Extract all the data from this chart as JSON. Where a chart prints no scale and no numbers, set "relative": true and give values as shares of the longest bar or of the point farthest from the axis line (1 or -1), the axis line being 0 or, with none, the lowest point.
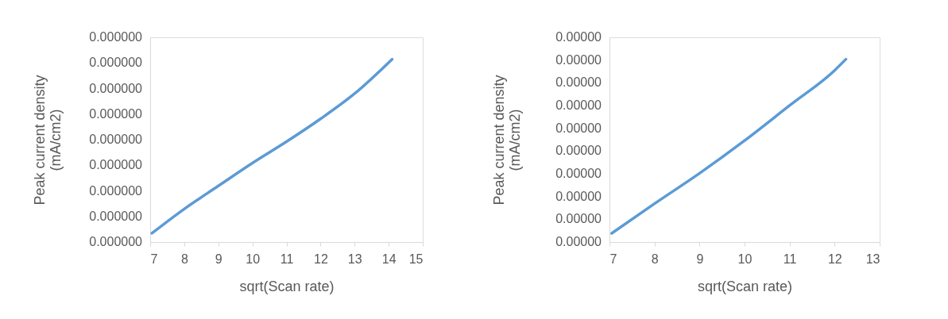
{
  "chart_data": [
    {
      "type": "line",
      "relative": true,
      "xlabel": "sqrt(Scan rate)",
      "ylabel": "Peak current density\n(mA/cm2)",
      "x": [
        7.05,
        8,
        9,
        10,
        11,
        12,
        13,
        14.1
      ],
      "series": [
        {
          "color": "#5b9bd5",
          "values": [
            0.048,
            0.181,
            0.307,
            0.432,
            0.549,
            0.674,
            0.812,
            1
          ]
        }
      ],
      "xlim": [
        7,
        15
      ],
      "xticks": [
        7,
        8,
        9,
        10,
        11,
        12,
        13,
        14,
        15
      ],
      "annotations": [
        "0.000000",
        "0.000000",
        "0.000000",
        "0.000000",
        "0.000000",
        "0.000000",
        "0.000000",
        "0.000000",
        "0.000000"
      ],
      "grid": false,
      "marker": "none",
      "line_style": "solid"
    },
    {
      "type": "line",
      "relative": true,
      "xlabel": "sqrt(Scan rate)",
      "ylabel": "Peak current density\n(mA/cm2)",
      "x": [
        7.05,
        8,
        9,
        10,
        11,
        12,
        12.25
      ],
      "series": [
        {
          "color": "#5b9bd5",
          "values": [
            0.048,
            0.21,
            0.376,
            0.555,
            0.747,
            0.939,
            1
          ]
        }
      ],
      "xlim": [
        7,
        13
      ],
      "xticks": [
        7,
        8,
        9,
        10,
        11,
        12,
        13
      ],
      "annotations": [
        "0.00000",
        "0.00000",
        "0.00000",
        "0.00000",
        "0.00000",
        "0.00000",
        "0.00000",
        "0.00000",
        "0.00000",
        "0.00000"
      ],
      "grid": false,
      "marker": "none",
      "line_style": "solid"
    }
  ]
}
